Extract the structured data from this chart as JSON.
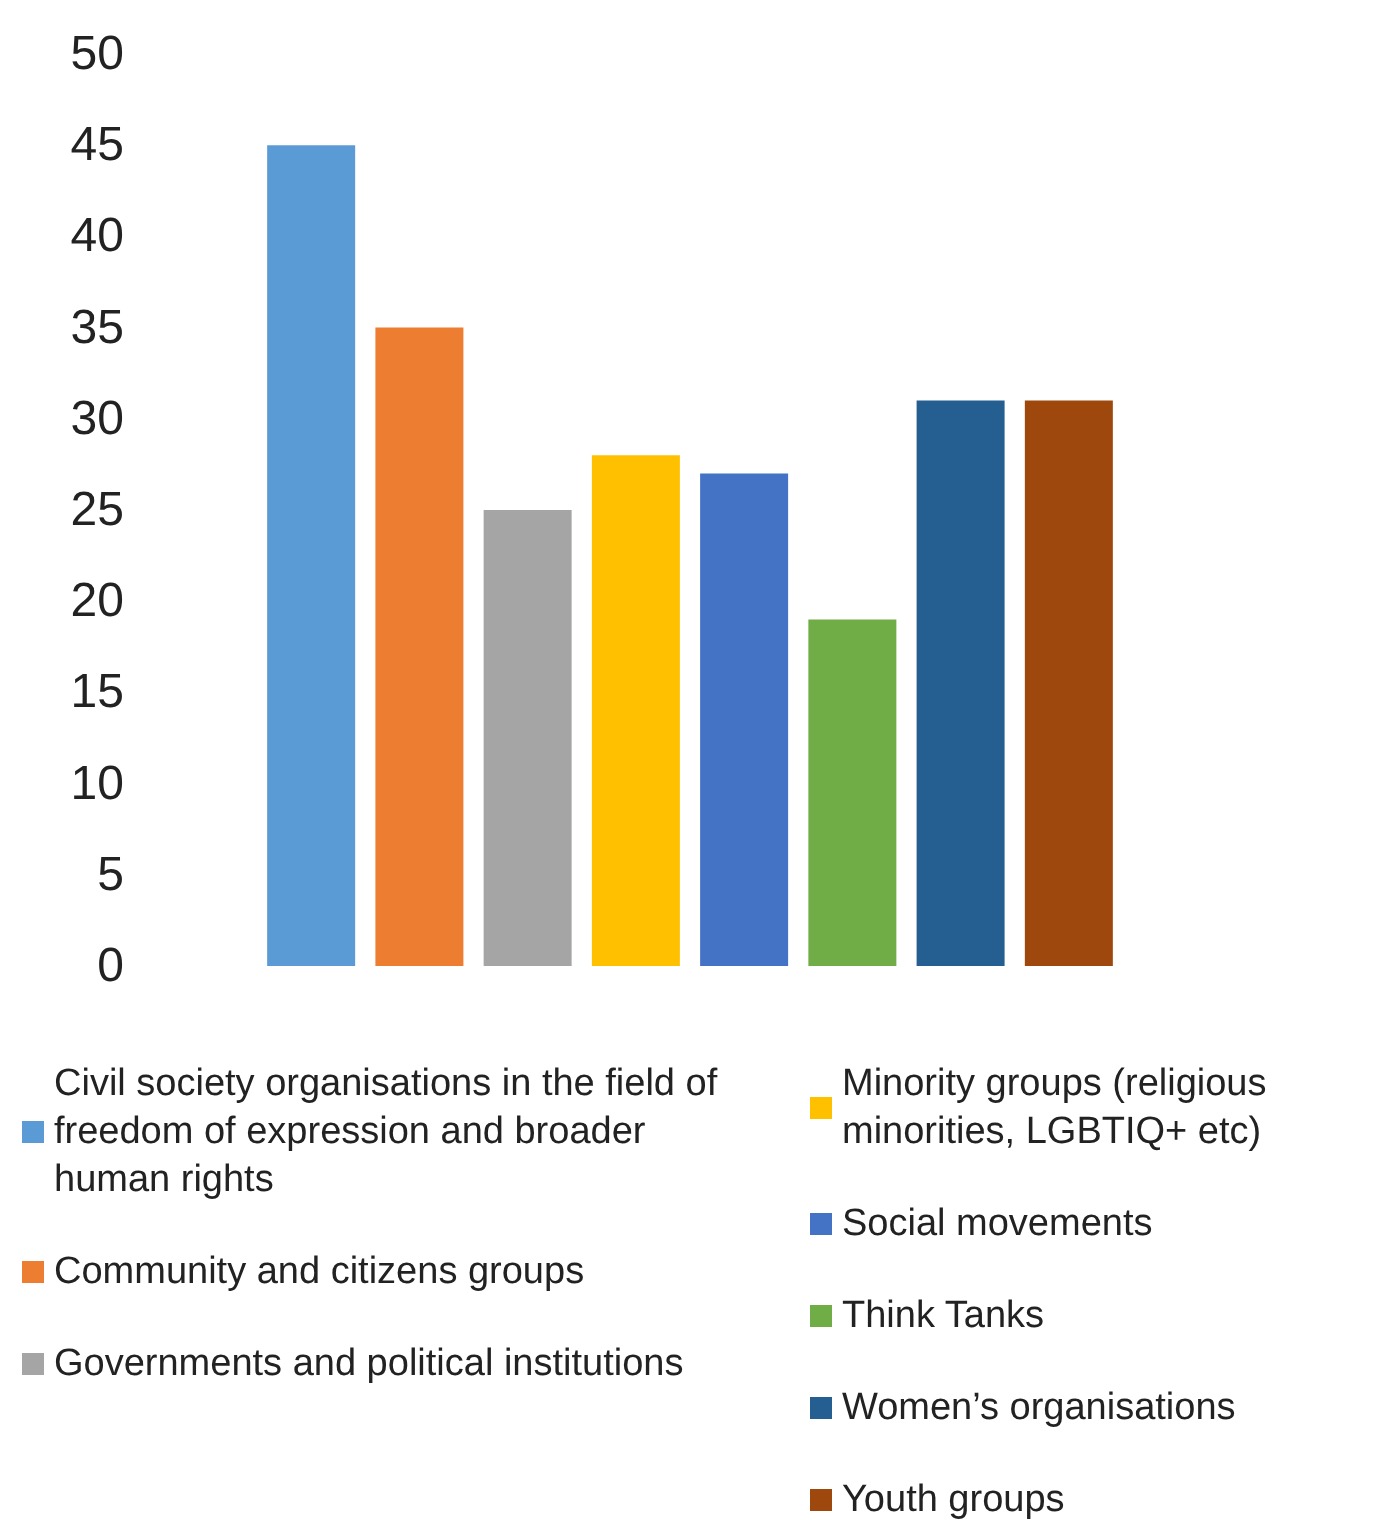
{
  "chart_data": {
    "type": "bar",
    "categories": [
      null
    ],
    "series": [
      {
        "name": "Civil society organisations in the field of freedom of expression and broader human rights",
        "color": "#5b9bd5",
        "values": [
          45
        ]
      },
      {
        "name": "Community and citizens groups",
        "color": "#ed7d31",
        "values": [
          35
        ]
      },
      {
        "name": "Governments and political institutions",
        "color": "#a5a5a5",
        "values": [
          25
        ]
      },
      {
        "name": "Minority groups (religious minorities, LGBTIQ+ etc)",
        "color": "#ffc000",
        "values": [
          28
        ]
      },
      {
        "name": "Social movements",
        "color": "#4472c4",
        "values": [
          27
        ]
      },
      {
        "name": "Think Tanks",
        "color": "#70ad47",
        "values": [
          19
        ]
      },
      {
        "name": "Women’s organisations",
        "color": "#255e91",
        "values": [
          31
        ]
      },
      {
        "name": "Youth groups",
        "color": "#9e480e",
        "values": [
          31
        ]
      }
    ],
    "ylim": [
      0,
      50
    ],
    "yticks": [
      0,
      5,
      10,
      15,
      20,
      25,
      30,
      35,
      40,
      45,
      50
    ],
    "grid": false,
    "legend": "bottom"
  }
}
